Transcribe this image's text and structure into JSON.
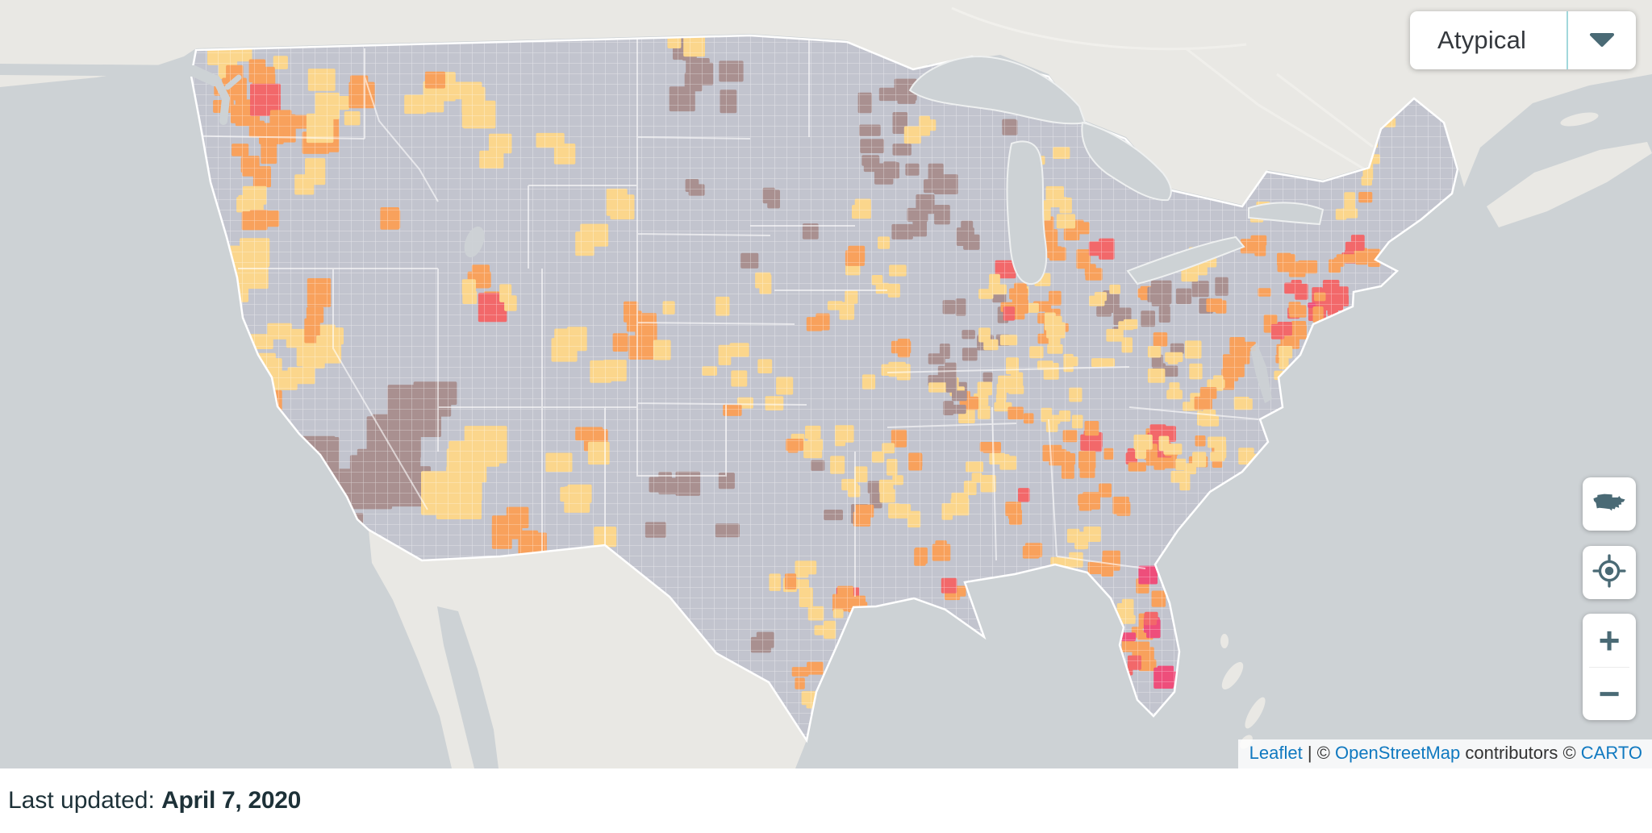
{
  "dropdown": {
    "value": "Atypical"
  },
  "controls": {
    "zoom_in": "+",
    "zoom_out": "−"
  },
  "attribution": {
    "leaflet": "Leaflet",
    "sep": " | © ",
    "osm": "OpenStreetMap",
    "contributors": " contributors © ",
    "carto": "CARTO"
  },
  "footer": {
    "label": "Last updated: ",
    "date": "April 7, 2020"
  },
  "map": {
    "palette": {
      "water": "#cdd2d5",
      "outside": "#e9e8e4",
      "base": "#c2c4ce",
      "border": "#ffffff",
      "yellow": "#fbd68c",
      "orange": "#f8a15c",
      "red": "#f2686a",
      "pink": "#ee4e7b",
      "brown": "#a99090",
      "icon": "#4a6a75",
      "divider": "#a2d8dc",
      "link": "#1079c0"
    },
    "clusters": [
      [
        302,
        72,
        48,
        14,
        5,
        24,
        "yellow"
      ],
      [
        330,
        95,
        18,
        10,
        3,
        22,
        "orange"
      ],
      [
        300,
        118,
        28,
        26,
        7,
        24,
        "orange"
      ],
      [
        328,
        118,
        10,
        9,
        1,
        30,
        "red"
      ],
      [
        375,
        158,
        32,
        20,
        5,
        26,
        "orange"
      ],
      [
        410,
        120,
        30,
        40,
        5,
        26,
        "yellow"
      ],
      [
        445,
        110,
        14,
        12,
        2,
        26,
        "orange"
      ],
      [
        330,
        150,
        20,
        16,
        3,
        22,
        "orange"
      ],
      [
        312,
        205,
        22,
        20,
        5,
        24,
        "orange"
      ],
      [
        305,
        245,
        18,
        16,
        4,
        22,
        "yellow"
      ],
      [
        322,
        262,
        22,
        14,
        3,
        24,
        "orange"
      ],
      [
        388,
        215,
        26,
        18,
        2,
        24,
        "yellow"
      ],
      [
        475,
        271,
        12,
        9,
        2,
        20,
        "orange"
      ],
      [
        560,
        118,
        52,
        26,
        7,
        28,
        "yellow"
      ],
      [
        618,
        188,
        12,
        22,
        2,
        22,
        "yellow"
      ],
      [
        698,
        180,
        20,
        14,
        2,
        24,
        "yellow"
      ],
      [
        528,
        92,
        14,
        10,
        1,
        22,
        "orange"
      ],
      [
        302,
        358,
        20,
        45,
        7,
        26,
        "yellow"
      ],
      [
        345,
        452,
        42,
        48,
        15,
        24,
        "yellow"
      ],
      [
        330,
        497,
        6,
        6,
        1,
        24,
        "orange"
      ],
      [
        395,
        425,
        28,
        32,
        5,
        24,
        "yellow"
      ],
      [
        455,
        560,
        68,
        60,
        15,
        42,
        "brown"
      ],
      [
        520,
        508,
        24,
        22,
        3,
        36,
        "brown"
      ],
      [
        430,
        645,
        22,
        10,
        2,
        26,
        "brown"
      ],
      [
        394,
        372,
        7,
        40,
        3,
        26,
        "orange"
      ],
      [
        408,
        420,
        10,
        14,
        2,
        20,
        "yellow"
      ],
      [
        602,
        352,
        9,
        26,
        3,
        24,
        "orange"
      ],
      [
        607,
        390,
        5,
        9,
        1,
        30,
        "red"
      ],
      [
        584,
        370,
        10,
        14,
        2,
        20,
        "yellow"
      ],
      [
        628,
        368,
        9,
        11,
        2,
        20,
        "yellow"
      ],
      [
        752,
        240,
        20,
        18,
        2,
        26,
        "yellow"
      ],
      [
        730,
        296,
        16,
        12,
        2,
        24,
        "yellow"
      ],
      [
        783,
        414,
        22,
        30,
        6,
        24,
        "orange"
      ],
      [
        706,
        424,
        20,
        12,
        3,
        22,
        "yellow"
      ],
      [
        758,
        455,
        16,
        10,
        2,
        22,
        "yellow"
      ],
      [
        575,
        585,
        40,
        42,
        8,
        42,
        "yellow"
      ],
      [
        645,
        655,
        26,
        20,
        5,
        30,
        "orange"
      ],
      [
        740,
        550,
        20,
        14,
        3,
        24,
        "orange"
      ],
      [
        718,
        592,
        28,
        36,
        5,
        24,
        "yellow"
      ],
      [
        754,
        670,
        9,
        7,
        1,
        22,
        "yellow"
      ],
      [
        878,
        92,
        38,
        36,
        8,
        22,
        "brown"
      ],
      [
        850,
        60,
        16,
        10,
        2,
        20,
        "yellow"
      ],
      [
        1100,
        170,
        38,
        60,
        8,
        20,
        "brown"
      ],
      [
        1095,
        212,
        16,
        14,
        5,
        15,
        "brown"
      ],
      [
        1060,
        255,
        14,
        10,
        2,
        16,
        "yellow"
      ],
      [
        1160,
        245,
        50,
        65,
        14,
        20,
        "brown"
      ],
      [
        1145,
        160,
        22,
        16,
        3,
        18,
        "yellow"
      ],
      [
        1255,
        155,
        14,
        9,
        2,
        16,
        "brown"
      ],
      [
        855,
        225,
        16,
        12,
        2,
        20,
        "brown"
      ],
      [
        962,
        238,
        12,
        9,
        2,
        18,
        "brown"
      ],
      [
        1008,
        287,
        9,
        7,
        1,
        18,
        "brown"
      ],
      [
        920,
        330,
        12,
        9,
        1,
        18,
        "brown"
      ],
      [
        870,
        420,
        55,
        45,
        6,
        18,
        "yellow"
      ],
      [
        940,
        345,
        12,
        9,
        2,
        18,
        "yellow"
      ],
      [
        1010,
        400,
        12,
        9,
        2,
        18,
        "orange"
      ],
      [
        1040,
        378,
        18,
        14,
        3,
        16,
        "yellow"
      ],
      [
        940,
        480,
        36,
        26,
        5,
        18,
        "yellow"
      ],
      [
        907,
        508,
        10,
        8,
        1,
        20,
        "orange"
      ],
      [
        1080,
        330,
        36,
        36,
        6,
        16,
        "yellow"
      ],
      [
        1067,
        322,
        9,
        8,
        2,
        16,
        "orange"
      ],
      [
        1125,
        430,
        12,
        9,
        2,
        18,
        "orange"
      ],
      [
        1100,
        470,
        26,
        22,
        4,
        16,
        "yellow"
      ],
      [
        1170,
        462,
        14,
        25,
        4,
        16,
        "brown"
      ],
      [
        1060,
        620,
        28,
        22,
        4,
        18,
        "brown"
      ],
      [
        1035,
        545,
        13,
        10,
        2,
        16,
        "yellow"
      ],
      [
        1200,
        420,
        45,
        65,
        12,
        16,
        "brown"
      ],
      [
        1240,
        440,
        20,
        30,
        4,
        16,
        "yellow"
      ],
      [
        1295,
        385,
        22,
        42,
        7,
        16,
        "orange"
      ],
      [
        1295,
        400,
        28,
        55,
        9,
        16,
        "yellow"
      ],
      [
        1390,
        385,
        28,
        38,
        6,
        16,
        "brown"
      ],
      [
        1385,
        395,
        26,
        40,
        7,
        16,
        "yellow"
      ],
      [
        1352,
        338,
        9,
        7,
        2,
        16,
        "orange"
      ],
      [
        1258,
        372,
        16,
        20,
        5,
        18,
        "orange"
      ],
      [
        1247,
        332,
        5,
        7,
        1,
        20,
        "red"
      ],
      [
        1252,
        392,
        4,
        5,
        1,
        18,
        "red"
      ],
      [
        1232,
        352,
        10,
        14,
        3,
        16,
        "yellow"
      ],
      [
        1322,
        300,
        26,
        26,
        8,
        18,
        "orange"
      ],
      [
        1308,
        258,
        20,
        18,
        5,
        18,
        "yellow"
      ],
      [
        1371,
        305,
        7,
        9,
        2,
        20,
        "red"
      ],
      [
        1300,
        195,
        16,
        9,
        2,
        16,
        "yellow"
      ],
      [
        1428,
        360,
        9,
        7,
        2,
        16,
        "orange"
      ],
      [
        1443,
        415,
        7,
        7,
        1,
        16,
        "orange"
      ],
      [
        1210,
        490,
        65,
        28,
        13,
        16,
        "yellow"
      ],
      [
        1330,
        468,
        46,
        22,
        7,
        16,
        "yellow"
      ],
      [
        1196,
        498,
        9,
        7,
        2,
        16,
        "orange"
      ],
      [
        1118,
        540,
        9,
        7,
        2,
        16,
        "orange"
      ],
      [
        1270,
        510,
        12,
        9,
        2,
        16,
        "orange"
      ],
      [
        1465,
        372,
        52,
        26,
        10,
        18,
        "brown"
      ],
      [
        1488,
        330,
        30,
        24,
        5,
        16,
        "yellow"
      ],
      [
        1508,
        378,
        9,
        7,
        2,
        16,
        "orange"
      ],
      [
        1552,
        300,
        14,
        10,
        3,
        16,
        "orange"
      ],
      [
        1570,
        260,
        14,
        10,
        2,
        16,
        "yellow"
      ],
      [
        1435,
        452,
        26,
        20,
        4,
        16,
        "brown"
      ],
      [
        1450,
        450,
        40,
        36,
        6,
        16,
        "yellow"
      ],
      [
        1520,
        468,
        16,
        10,
        3,
        16,
        "orange"
      ],
      [
        1480,
        482,
        40,
        22,
        7,
        16,
        "yellow"
      ],
      [
        1628,
        378,
        28,
        26,
        12,
        17,
        "red"
      ],
      [
        1663,
        372,
        20,
        7,
        4,
        16,
        "red"
      ],
      [
        1627,
        380,
        2,
        2,
        1,
        9,
        "pink"
      ],
      [
        1600,
        360,
        38,
        42,
        10,
        16,
        "orange"
      ],
      [
        1605,
        405,
        9,
        22,
        4,
        16,
        "orange"
      ],
      [
        1585,
        410,
        8,
        8,
        2,
        16,
        "red"
      ],
      [
        1598,
        440,
        12,
        10,
        2,
        16,
        "orange"
      ],
      [
        1535,
        440,
        14,
        12,
        5,
        16,
        "orange"
      ],
      [
        1540,
        498,
        11,
        9,
        2,
        16,
        "yellow"
      ],
      [
        1592,
        452,
        10,
        16,
        3,
        16,
        "yellow"
      ],
      [
        1680,
        312,
        9,
        9,
        3,
        16,
        "red"
      ],
      [
        1660,
        330,
        12,
        10,
        3,
        16,
        "orange"
      ],
      [
        1692,
        315,
        12,
        10,
        4,
        16,
        "orange"
      ],
      [
        1687,
        302,
        5,
        5,
        1,
        16,
        "red"
      ],
      [
        1662,
        258,
        16,
        12,
        3,
        16,
        "yellow"
      ],
      [
        1700,
        200,
        18,
        26,
        4,
        16,
        "yellow"
      ],
      [
        1722,
        148,
        10,
        12,
        2,
        16,
        "yellow"
      ],
      [
        1690,
        242,
        7,
        7,
        1,
        16,
        "orange"
      ],
      [
        1238,
        588,
        30,
        26,
        6,
        16,
        "yellow"
      ],
      [
        1272,
        612,
        7,
        7,
        1,
        18,
        "red"
      ],
      [
        1262,
        640,
        16,
        12,
        3,
        16,
        "orange"
      ],
      [
        1222,
        555,
        10,
        9,
        2,
        16,
        "orange"
      ],
      [
        1190,
        620,
        22,
        26,
        4,
        16,
        "yellow"
      ],
      [
        1188,
        490,
        22,
        18,
        4,
        16,
        "brown"
      ],
      [
        1095,
        585,
        30,
        30,
        6,
        16,
        "yellow"
      ],
      [
        1128,
        568,
        9,
        7,
        2,
        16,
        "orange"
      ],
      [
        1152,
        690,
        22,
        12,
        4,
        16,
        "orange"
      ],
      [
        1185,
        738,
        9,
        7,
        2,
        16,
        "orange"
      ],
      [
        1178,
        728,
        5,
        5,
        1,
        16,
        "red"
      ],
      [
        1122,
        640,
        14,
        12,
        3,
        16,
        "yellow"
      ],
      [
        1345,
        548,
        12,
        12,
        4,
        16,
        "red"
      ],
      [
        1340,
        560,
        36,
        32,
        10,
        16,
        "orange"
      ],
      [
        1318,
        520,
        26,
        18,
        5,
        16,
        "yellow"
      ],
      [
        1368,
        630,
        26,
        24,
        6,
        16,
        "orange"
      ],
      [
        1340,
        665,
        22,
        16,
        4,
        16,
        "yellow"
      ],
      [
        1405,
        570,
        9,
        9,
        2,
        16,
        "red"
      ],
      [
        1428,
        560,
        22,
        20,
        5,
        16,
        "orange"
      ],
      [
        1438,
        552,
        7,
        7,
        2,
        16,
        "red"
      ],
      [
        1455,
        588,
        14,
        12,
        3,
        16,
        "yellow"
      ],
      [
        1442,
        532,
        9,
        7,
        2,
        16,
        "red"
      ],
      [
        1470,
        560,
        55,
        14,
        8,
        16,
        "orange"
      ],
      [
        1480,
        565,
        75,
        18,
        12,
        16,
        "yellow"
      ],
      [
        1505,
        498,
        18,
        12,
        3,
        16,
        "orange"
      ],
      [
        1498,
        522,
        18,
        12,
        3,
        16,
        "yellow"
      ],
      [
        860,
        615,
        48,
        48,
        7,
        22,
        "brown"
      ],
      [
        948,
        795,
        12,
        10,
        2,
        20,
        "brown"
      ],
      [
        1000,
        548,
        26,
        18,
        6,
        16,
        "yellow"
      ],
      [
        990,
        550,
        7,
        7,
        2,
        16,
        "orange"
      ],
      [
        1022,
        572,
        9,
        7,
        1,
        16,
        "brown"
      ],
      [
        985,
        720,
        26,
        24,
        6,
        18,
        "yellow"
      ],
      [
        982,
        717,
        7,
        7,
        1,
        18,
        "orange"
      ],
      [
        1045,
        737,
        7,
        7,
        1,
        22,
        "red"
      ],
      [
        1057,
        748,
        16,
        12,
        4,
        16,
        "orange"
      ],
      [
        1030,
        775,
        22,
        16,
        4,
        16,
        "yellow"
      ],
      [
        1000,
        830,
        12,
        18,
        3,
        16,
        "orange"
      ],
      [
        1005,
        868,
        10,
        12,
        2,
        16,
        "yellow"
      ],
      [
        1058,
        600,
        22,
        26,
        5,
        16,
        "yellow"
      ],
      [
        1075,
        638,
        9,
        7,
        2,
        16,
        "orange"
      ],
      [
        1418,
        780,
        24,
        70,
        11,
        18,
        "orange"
      ],
      [
        1422,
        718,
        7,
        7,
        1,
        20,
        "pink"
      ],
      [
        1426,
        782,
        7,
        9,
        2,
        18,
        "pink"
      ],
      [
        1448,
        838,
        9,
        16,
        3,
        20,
        "pink"
      ],
      [
        1398,
        795,
        5,
        7,
        1,
        16,
        "pink"
      ],
      [
        1430,
        765,
        7,
        7,
        2,
        16,
        "red"
      ],
      [
        1406,
        828,
        9,
        11,
        2,
        16,
        "red"
      ],
      [
        1392,
        755,
        9,
        18,
        3,
        16,
        "yellow"
      ],
      [
        1380,
        700,
        22,
        12,
        4,
        16,
        "orange"
      ],
      [
        1320,
        695,
        18,
        10,
        3,
        16,
        "yellow"
      ],
      [
        1285,
        690,
        12,
        9,
        2,
        16,
        "orange"
      ]
    ]
  }
}
